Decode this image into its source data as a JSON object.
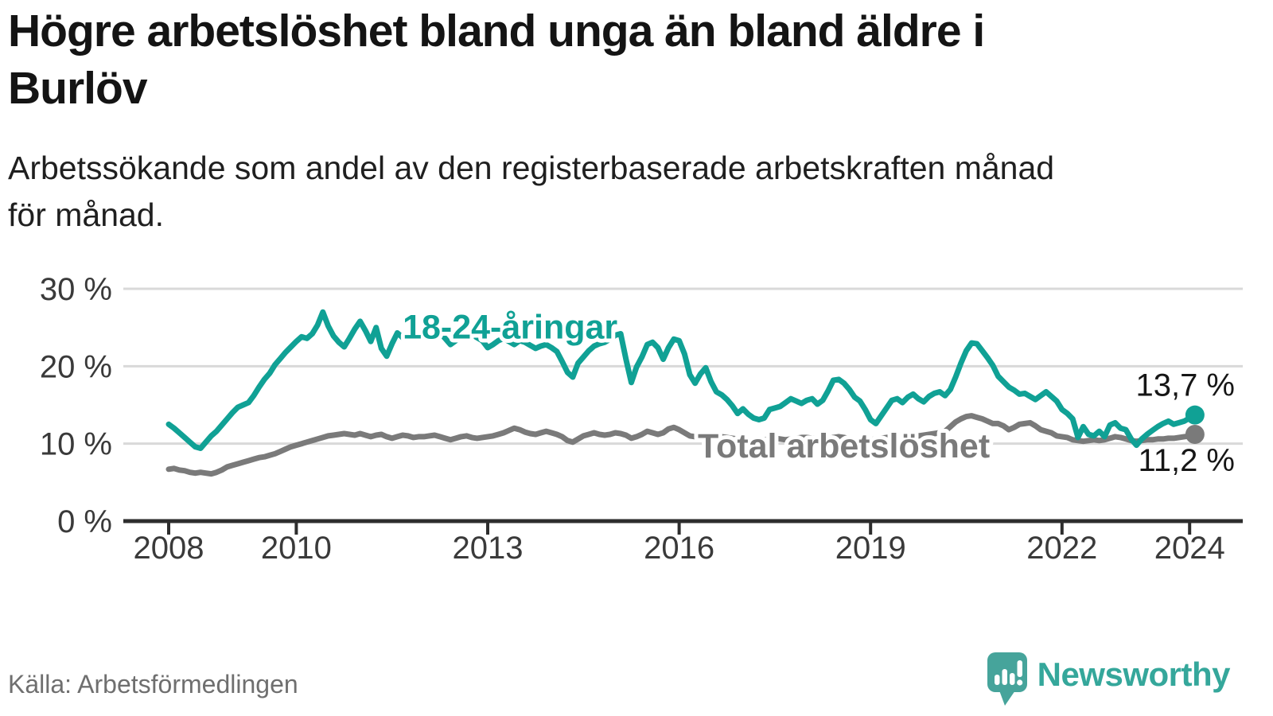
{
  "page": {
    "title_lines": [
      "Högre arbetslöshet bland unga än bland äldre i",
      "Burlöv"
    ],
    "subtitle_lines": [
      "Arbetssökande som andel av den registerbaserade arbetskraften månad",
      "för månad."
    ],
    "source": "Källa: Arbetsförmedlingen",
    "brand_name": "Newsworthy"
  },
  "colors": {
    "accent_teal": "#10a195",
    "logo_teal": "#46a49b",
    "wordmark_teal": "#35a79b",
    "series_gray": "#7a7a7a",
    "gridline": "#d9d9d9",
    "axis": "#2d2d2d",
    "tick_text": "#3a3a3a",
    "end_label_text": "#161616"
  },
  "chart_data": {
    "type": "line",
    "title": "Högre arbetslöshet bland unga än bland äldre i Burlöv",
    "subtitle": "Arbetssökande som andel av den registerbaserade arbetskraften månad för månad.",
    "x_unit": "month",
    "start": "2008-01",
    "end": "2024-02",
    "ylim": [
      0,
      30
    ],
    "grid": true,
    "y_ticks": [
      {
        "value": 30,
        "label": "30 %"
      },
      {
        "value": 20,
        "label": "20 %"
      },
      {
        "value": 10,
        "label": "10 %"
      },
      {
        "value": 0,
        "label": "0 %"
      }
    ],
    "x_ticks": [
      {
        "year": 2008,
        "label": "2008",
        "month_index": 0
      },
      {
        "year": 2010,
        "label": "2010",
        "month_index": 24
      },
      {
        "year": 2013,
        "label": "2013",
        "month_index": 60
      },
      {
        "year": 2016,
        "label": "2016",
        "month_index": 96
      },
      {
        "year": 2019,
        "label": "2019",
        "month_index": 132
      },
      {
        "year": 2022,
        "label": "2022",
        "month_index": 168
      },
      {
        "year": 2024,
        "label": "2024",
        "month_index": 192
      }
    ],
    "series": [
      {
        "name": "Total arbetslöshet",
        "label_text": "Total arbetslöshet",
        "color": "#7a7a7a",
        "end_label": "11,2 %",
        "end_value": 11.2,
        "label_anchor": {
          "month_index": 99.5,
          "baseline_value": 8.2
        },
        "values": [
          6.7,
          6.8,
          6.6,
          6.5,
          6.3,
          6.2,
          6.3,
          6.2,
          6.1,
          6.3,
          6.6,
          7.0,
          7.2,
          7.4,
          7.6,
          7.8,
          8.0,
          8.2,
          8.3,
          8.5,
          8.7,
          9.0,
          9.3,
          9.6,
          9.8,
          10.0,
          10.2,
          10.4,
          10.6,
          10.8,
          11.0,
          11.1,
          11.2,
          11.3,
          11.2,
          11.1,
          11.3,
          11.1,
          10.9,
          11.1,
          11.2,
          10.9,
          10.7,
          10.9,
          11.1,
          11.0,
          10.8,
          10.9,
          10.9,
          11.0,
          11.1,
          10.9,
          10.7,
          10.5,
          10.7,
          10.9,
          11.0,
          10.8,
          10.7,
          10.8,
          10.9,
          11.0,
          11.2,
          11.4,
          11.7,
          12.0,
          11.8,
          11.5,
          11.3,
          11.2,
          11.4,
          11.6,
          11.4,
          11.2,
          10.9,
          10.4,
          10.2,
          10.6,
          11.0,
          11.2,
          11.4,
          11.2,
          11.1,
          11.2,
          11.4,
          11.3,
          11.1,
          10.7,
          10.9,
          11.2,
          11.6,
          11.4,
          11.2,
          11.4,
          11.9,
          12.1,
          11.8,
          11.4,
          11.0,
          10.9,
          11.1,
          11.3,
          11.2,
          11.0,
          10.9,
          10.8,
          10.7,
          10.6,
          10.5,
          10.4,
          10.3,
          10.4,
          10.5,
          10.6,
          10.7,
          10.6,
          10.5,
          10.6,
          10.7,
          10.8,
          10.8,
          10.7,
          10.6,
          10.5,
          10.6,
          10.8,
          10.9,
          10.8,
          10.6,
          10.4,
          10.3,
          10.4,
          10.5,
          10.6,
          10.7,
          10.8,
          10.9,
          11.0,
          11.1,
          11.0,
          10.9,
          11.0,
          11.1,
          11.2,
          11.3,
          11.4,
          11.6,
          12.2,
          12.8,
          13.2,
          13.5,
          13.6,
          13.4,
          13.2,
          12.9,
          12.6,
          12.6,
          12.3,
          11.8,
          12.1,
          12.5,
          12.6,
          12.7,
          12.3,
          11.8,
          11.6,
          11.4,
          11.0,
          10.9,
          10.8,
          10.5,
          10.4,
          10.3,
          10.4,
          10.5,
          10.4,
          10.5,
          10.7,
          10.9,
          10.8,
          10.6,
          10.4,
          10.3,
          10.4,
          10.5,
          10.5,
          10.6,
          10.6,
          10.7,
          10.7,
          10.8,
          10.9,
          11.0,
          11.2
        ]
      },
      {
        "name": "18-24-åringar",
        "label_text": "18-24-åringar",
        "color": "#10a195",
        "end_label": "13,7 %",
        "end_value": 13.7,
        "label_anchor": {
          "month_index": 44,
          "baseline_value": 23.6
        },
        "values": [
          12.5,
          12.0,
          11.4,
          10.8,
          10.2,
          9.6,
          9.4,
          10.2,
          11.0,
          11.6,
          12.4,
          13.2,
          14.0,
          14.7,
          15.0,
          15.3,
          16.2,
          17.3,
          18.3,
          19.1,
          20.2,
          21.0,
          21.8,
          22.5,
          23.2,
          23.8,
          23.6,
          24.2,
          25.3,
          27.0,
          25.2,
          23.9,
          23.1,
          22.5,
          23.6,
          24.8,
          25.8,
          24.6,
          23.2,
          25.0,
          22.3,
          21.3,
          22.9,
          24.3,
          23.7,
          24.1,
          24.5,
          24.2,
          24.0,
          24.4,
          24.8,
          24.3,
          23.6,
          22.8,
          23.3,
          24.3,
          24.6,
          24.1,
          23.7,
          23.3,
          22.4,
          22.8,
          23.3,
          23.6,
          23.2,
          22.8,
          23.3,
          23.1,
          22.7,
          22.3,
          22.6,
          22.8,
          22.4,
          21.9,
          20.6,
          19.2,
          18.6,
          20.4,
          21.2,
          22.0,
          22.6,
          22.9,
          23.1,
          23.5,
          24.0,
          24.2,
          20.9,
          17.9,
          19.9,
          21.2,
          22.8,
          23.1,
          22.4,
          20.9,
          22.4,
          23.5,
          23.3,
          21.6,
          18.9,
          17.8,
          19.0,
          19.8,
          18.0,
          16.7,
          16.3,
          15.7,
          14.9,
          13.9,
          14.5,
          13.8,
          13.3,
          13.1,
          13.3,
          14.4,
          14.6,
          14.8,
          15.3,
          15.8,
          15.5,
          15.2,
          15.6,
          15.8,
          15.1,
          15.6,
          16.8,
          18.2,
          18.3,
          17.8,
          17.0,
          16.0,
          15.5,
          14.4,
          13.1,
          12.6,
          13.6,
          14.6,
          15.6,
          15.8,
          15.3,
          16.0,
          16.4,
          15.8,
          15.4,
          16.1,
          16.5,
          16.7,
          16.2,
          17.0,
          18.6,
          20.4,
          22.0,
          23.0,
          22.9,
          22.0,
          21.1,
          20.1,
          18.7,
          18.0,
          17.3,
          16.9,
          16.4,
          16.5,
          16.1,
          15.7,
          16.2,
          16.7,
          16.1,
          15.5,
          14.4,
          13.9,
          13.2,
          10.8,
          12.2,
          11.2,
          11.0,
          11.6,
          10.9,
          12.4,
          12.7,
          12.0,
          11.8,
          10.6,
          9.8,
          10.6,
          11.2,
          11.7,
          12.2,
          12.6,
          12.9,
          12.5,
          12.7,
          12.9,
          13.3,
          13.7
        ]
      }
    ]
  }
}
